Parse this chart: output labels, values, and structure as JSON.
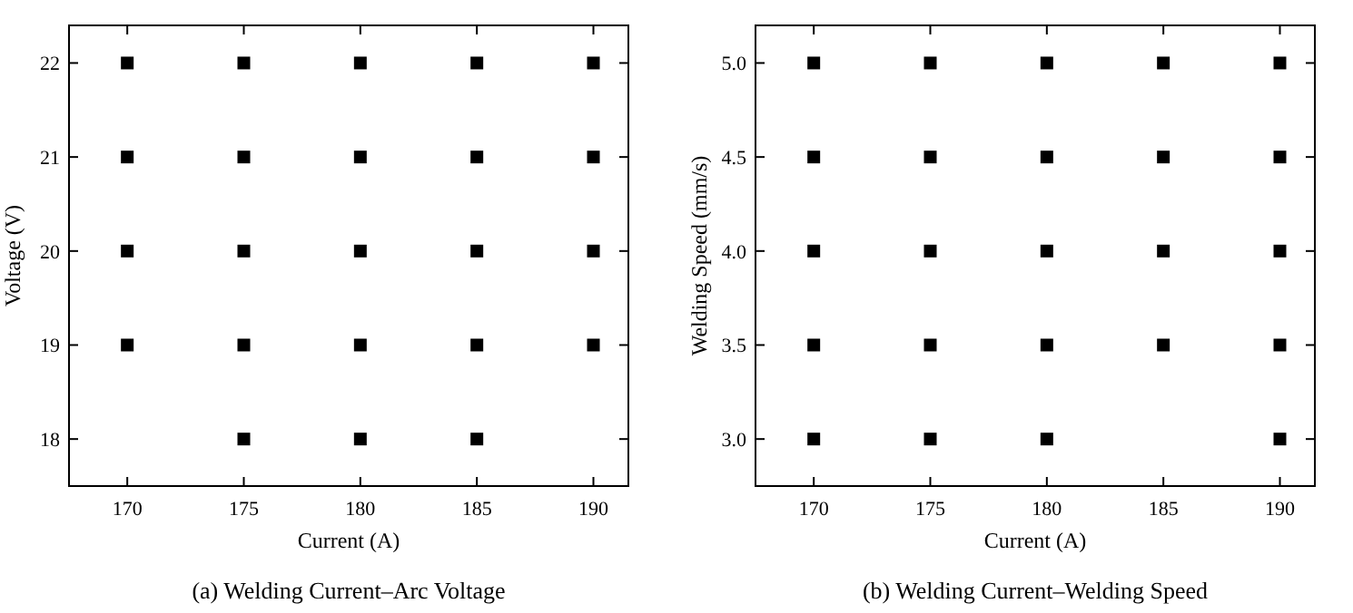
{
  "chart_data": [
    {
      "type": "scatter",
      "title": "(a) Welding Current–Arc Voltage",
      "xlabel": "Current (A)",
      "ylabel": "Voltage (V)",
      "marker": "square",
      "grid": false,
      "xlim": [
        167.5,
        191.5
      ],
      "xticks": [
        170,
        175,
        180,
        185,
        190
      ],
      "ylim": [
        17.5,
        22.4
      ],
      "yticks": [
        18,
        19,
        20,
        21,
        22
      ],
      "series": [
        {
          "color": "#000000",
          "x": [
            170,
            170,
            170,
            170,
            175,
            175,
            175,
            175,
            175,
            180,
            180,
            180,
            180,
            180,
            185,
            185,
            185,
            185,
            185,
            190,
            190,
            190,
            190
          ],
          "values": [
            19,
            20,
            21,
            22,
            18,
            19,
            20,
            21,
            22,
            18,
            19,
            20,
            21,
            22,
            18,
            19,
            20,
            21,
            22,
            19,
            20,
            21,
            22
          ]
        }
      ]
    },
    {
      "type": "scatter",
      "title": "(b) Welding Current–Welding Speed",
      "xlabel": "Current (A)",
      "ylabel": "Welding Speed (mm/s)",
      "marker": "square",
      "grid": false,
      "xlim": [
        167.5,
        191.5
      ],
      "xticks": [
        170,
        175,
        180,
        185,
        190
      ],
      "ylim": [
        2.75,
        5.2
      ],
      "yticks": [
        {
          "value": 3,
          "label": "3.0"
        },
        {
          "value": 3.5,
          "label": "3.5"
        },
        {
          "value": 4,
          "label": "4.0"
        },
        {
          "value": 4.5,
          "label": "4.5"
        },
        {
          "value": 5,
          "label": "5.0"
        }
      ],
      "series": [
        {
          "color": "#000000",
          "x": [
            170,
            170,
            170,
            170,
            170,
            175,
            175,
            175,
            175,
            175,
            180,
            180,
            180,
            180,
            180,
            185,
            185,
            185,
            185,
            190,
            190,
            190,
            190,
            190
          ],
          "values": [
            3,
            3.5,
            4,
            4.5,
            5,
            3,
            3.5,
            4,
            4.5,
            5,
            3,
            3.5,
            4,
            4.5,
            5,
            3.5,
            4,
            4.5,
            5,
            3,
            3.5,
            4,
            4.5,
            5
          ]
        }
      ]
    }
  ]
}
